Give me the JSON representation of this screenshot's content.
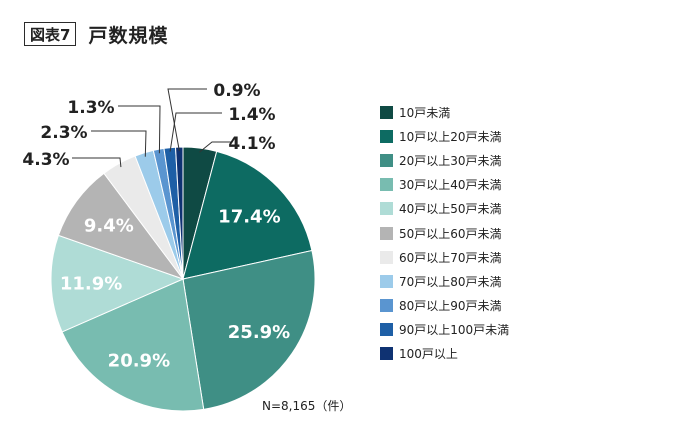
{
  "figure_label": "図表7",
  "figure_title": "戸数規模",
  "note": "N=8,165（件）",
  "chart_data": {
    "type": "pie",
    "title": "戸数規模",
    "start_angle_deg": 0,
    "direction": "clockwise",
    "slices": [
      {
        "label": "10戸未満",
        "value": 4.1,
        "display": "4.1%",
        "color": "#0f4a44"
      },
      {
        "label": "10戸以上20戸未満",
        "value": 17.4,
        "display": "17.4%",
        "color": "#0d6b62"
      },
      {
        "label": "20戸以上30戸未満",
        "value": 25.9,
        "display": "25.9%",
        "color": "#3f8f85"
      },
      {
        "label": "30戸以上40戸未満",
        "value": 20.9,
        "display": "20.9%",
        "color": "#78bcb0"
      },
      {
        "label": "40戸以上50戸未満",
        "value": 11.9,
        "display": "11.9%",
        "color": "#afdcd6"
      },
      {
        "label": "50戸以上60戸未満",
        "value": 9.4,
        "display": "9.4%",
        "color": "#b4b4b4"
      },
      {
        "label": "60戸以上70戸未満",
        "value": 4.3,
        "display": "4.3%",
        "color": "#eaeaea"
      },
      {
        "label": "70戸以上80戸未満",
        "value": 2.3,
        "display": "2.3%",
        "color": "#9ccbea"
      },
      {
        "label": "80戸以上90戸未満",
        "value": 1.3,
        "display": "1.3%",
        "color": "#5a95d0"
      },
      {
        "label": "90戸以上100戸未満",
        "value": 1.4,
        "display": "1.4%",
        "color": "#1e5fa6"
      },
      {
        "label": "100戸以上",
        "value": 0.9,
        "display": "0.9%",
        "color": "#0f3272"
      }
    ]
  }
}
